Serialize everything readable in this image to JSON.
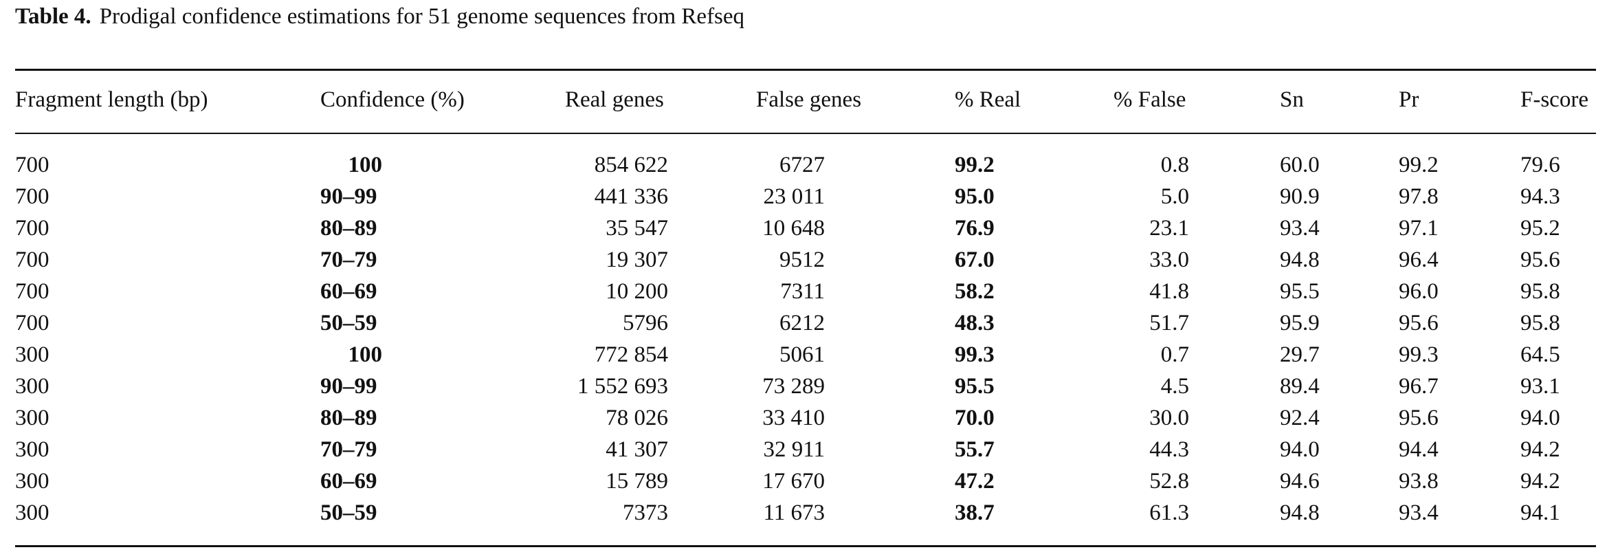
{
  "caption": {
    "label": "Table 4.",
    "text": "Prodigal confidence estimations for 51 genome sequences from Refseq"
  },
  "table": {
    "headers": [
      "Fragment length (bp)",
      "Confidence (%)",
      "Real genes",
      "False genes",
      "% Real",
      "% False",
      "Sn",
      "Pr",
      "F-score"
    ],
    "rows": [
      [
        "700",
        "100",
        "854 622",
        "6727",
        "99.2",
        "0.8",
        "60.0",
        "99.2",
        "79.6"
      ],
      [
        "700",
        "90–99",
        "441 336",
        "23 011",
        "95.0",
        "5.0",
        "90.9",
        "97.8",
        "94.3"
      ],
      [
        "700",
        "80–89",
        "35 547",
        "10 648",
        "76.9",
        "23.1",
        "93.4",
        "97.1",
        "95.2"
      ],
      [
        "700",
        "70–79",
        "19 307",
        "9512",
        "67.0",
        "33.0",
        "94.8",
        "96.4",
        "95.6"
      ],
      [
        "700",
        "60–69",
        "10 200",
        "7311",
        "58.2",
        "41.8",
        "95.5",
        "96.0",
        "95.8"
      ],
      [
        "700",
        "50–59",
        "5796",
        "6212",
        "48.3",
        "51.7",
        "95.9",
        "95.6",
        "95.8"
      ],
      [
        "300",
        "100",
        "772 854",
        "5061",
        "99.3",
        "0.7",
        "29.7",
        "99.3",
        "64.5"
      ],
      [
        "300",
        "90–99",
        "1 552 693",
        "73 289",
        "95.5",
        "4.5",
        "89.4",
        "96.7",
        "93.1"
      ],
      [
        "300",
        "80–89",
        "78 026",
        "33 410",
        "70.0",
        "30.0",
        "92.4",
        "95.6",
        "94.0"
      ],
      [
        "300",
        "70–79",
        "41 307",
        "32 911",
        "55.7",
        "44.3",
        "94.0",
        "94.4",
        "94.2"
      ],
      [
        "300",
        "60–69",
        "15 789",
        "17 670",
        "47.2",
        "52.8",
        "94.6",
        "93.8",
        "94.2"
      ],
      [
        "300",
        "50–59",
        "7373",
        "11 673",
        "38.7",
        "61.3",
        "94.8",
        "93.4",
        "94.1"
      ]
    ]
  }
}
